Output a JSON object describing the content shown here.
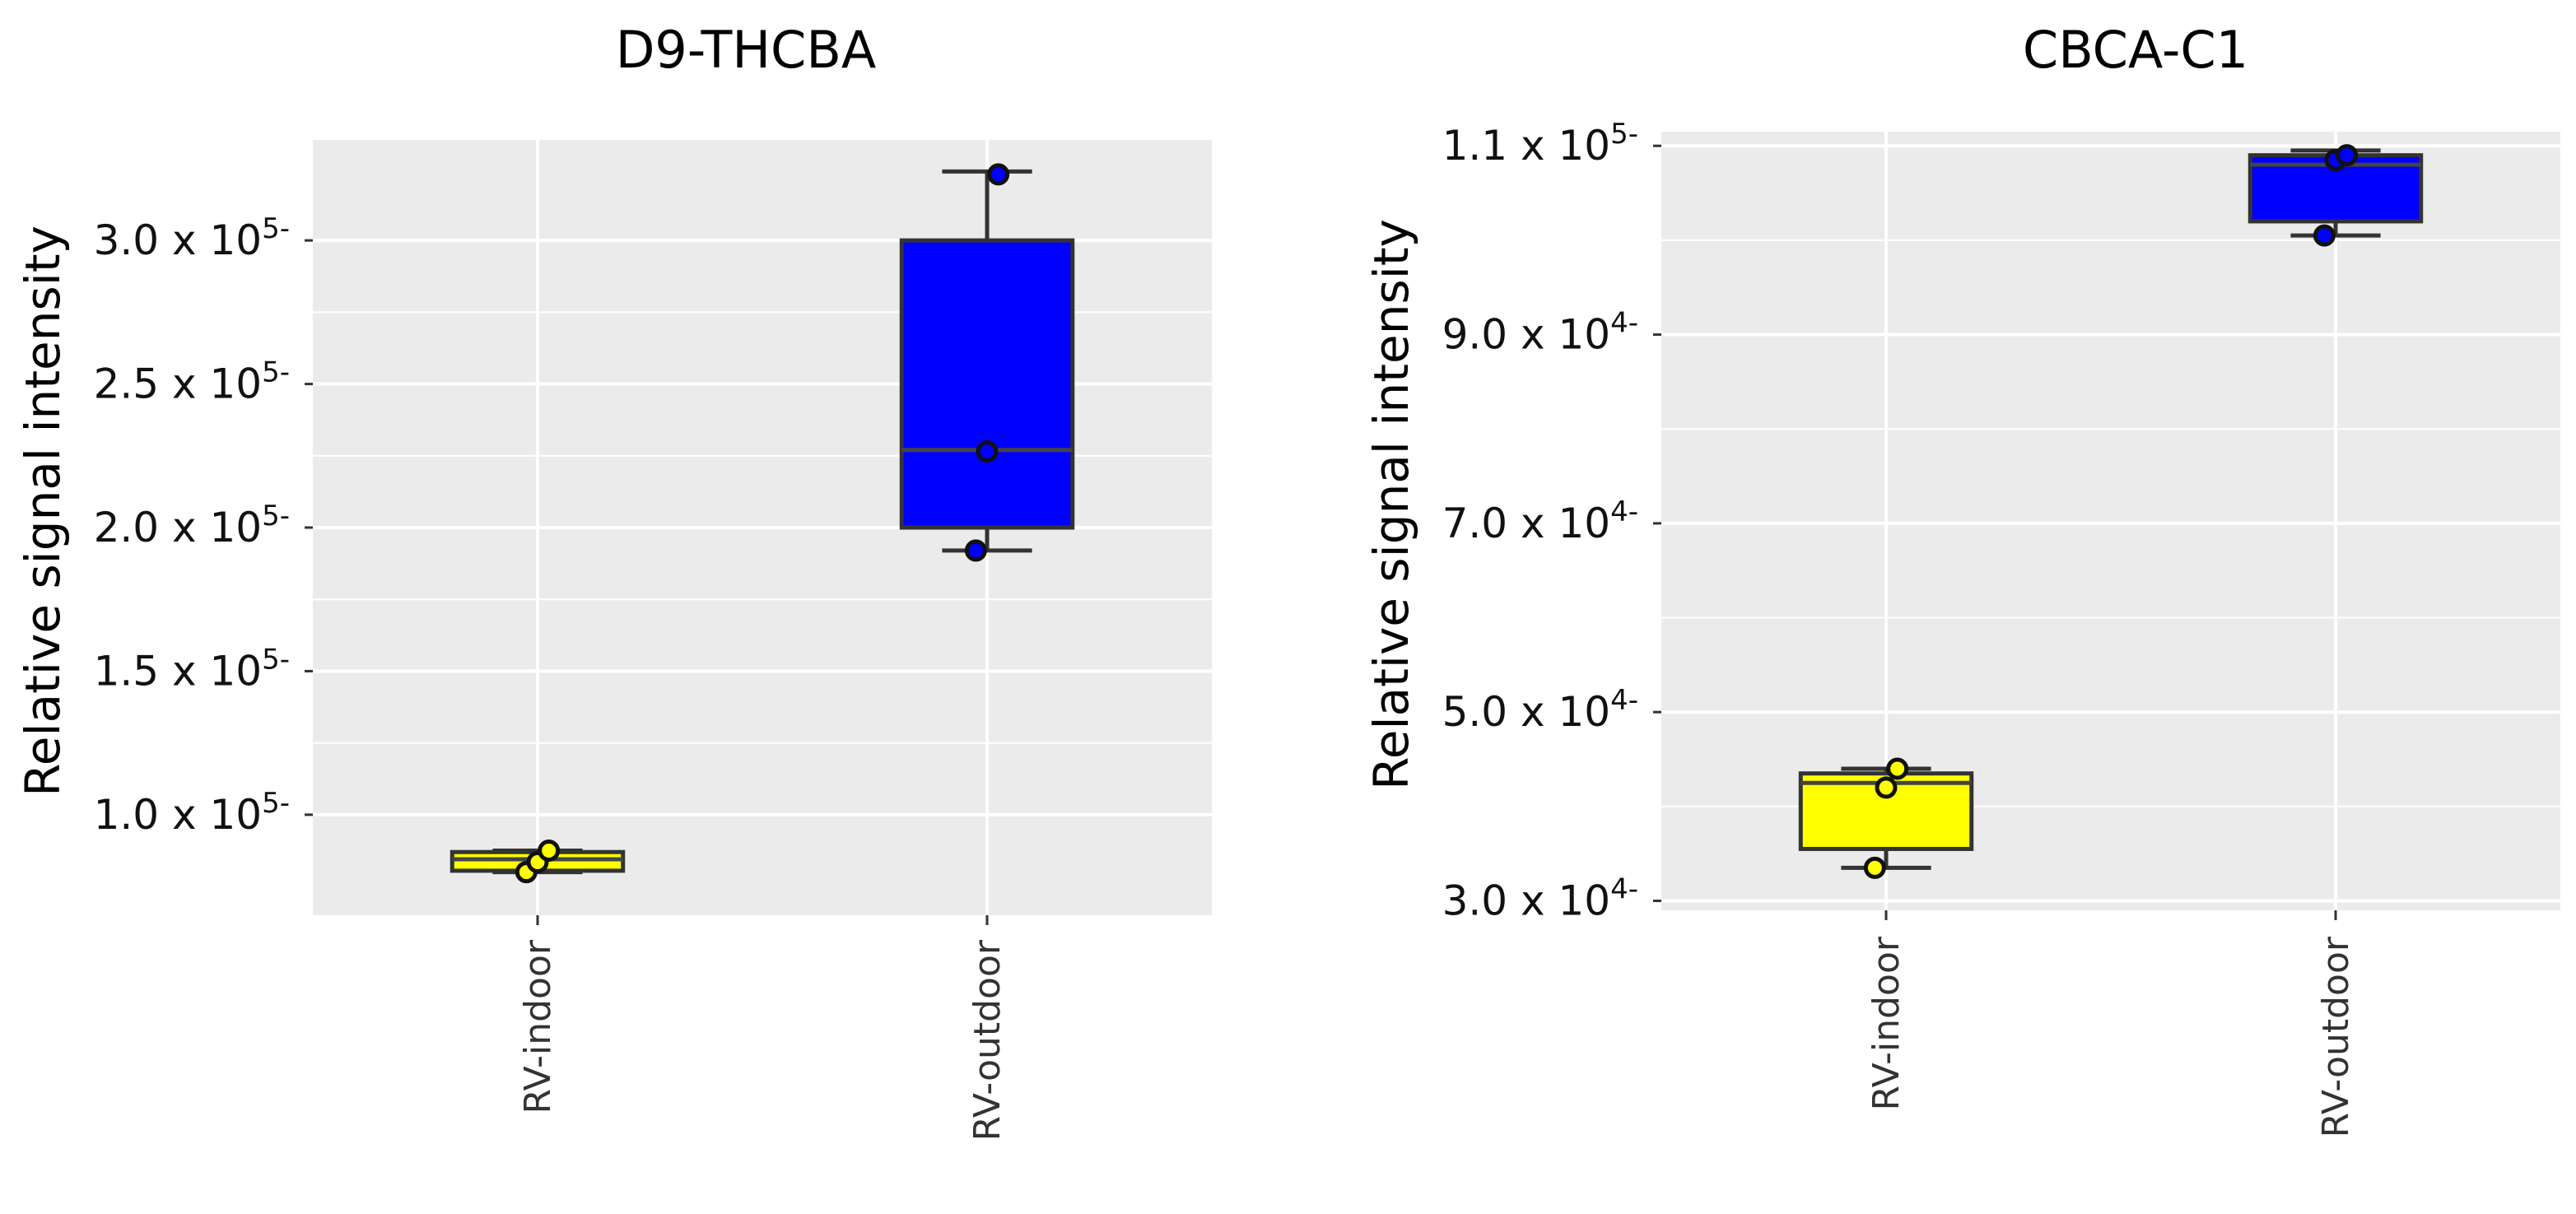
{
  "chart_data": [
    {
      "type": "box",
      "title": "D9-THCBA",
      "ylabel": "Relative signal intensity",
      "ylim": [
        65000,
        335000
      ],
      "yticks": [
        {
          "value": 100000,
          "mantissa": "1.0",
          "base": "x 10",
          "exp": "5-"
        },
        {
          "value": 150000,
          "mantissa": "1.5",
          "base": "x 10",
          "exp": "5-"
        },
        {
          "value": 200000,
          "mantissa": "2.0",
          "base": "x 10",
          "exp": "5-"
        },
        {
          "value": 250000,
          "mantissa": "2.5",
          "base": "x 10",
          "exp": "5-"
        },
        {
          "value": 300000,
          "mantissa": "3.0",
          "base": "x 10",
          "exp": "5-"
        }
      ],
      "categories": [
        "RV-indoor",
        "RV-outdoor"
      ],
      "boxes": [
        {
          "category": "RV-indoor",
          "fill": "#ffff00",
          "min": 80000,
          "q1": 80500,
          "median": 84500,
          "q3": 87000,
          "max": 87500,
          "points": [
            80000,
            83500,
            87500
          ]
        },
        {
          "category": "RV-outdoor",
          "fill": "#0000ff",
          "min": 192000,
          "q1": 200000,
          "median": 227000,
          "q3": 300000,
          "max": 324000,
          "points": [
            192000,
            226500,
            323000
          ]
        }
      ]
    },
    {
      "type": "box",
      "title": "CBCA-C1",
      "ylabel": "Relative signal intensity",
      "ylim": [
        29000,
        111500
      ],
      "yticks": [
        {
          "value": 30000,
          "mantissa": "3.0",
          "base": "x 10",
          "exp": "4-"
        },
        {
          "value": 50000,
          "mantissa": "5.0",
          "base": "x 10",
          "exp": "4-"
        },
        {
          "value": 70000,
          "mantissa": "7.0",
          "base": "x 10",
          "exp": "4-"
        },
        {
          "value": 90000,
          "mantissa": "9.0",
          "base": "x 10",
          "exp": "4-"
        },
        {
          "value": 110000,
          "mantissa": "1.1",
          "base": "x 10",
          "exp": "5-"
        }
      ],
      "categories": [
        "RV-indoor",
        "RV-outdoor"
      ],
      "boxes": [
        {
          "category": "RV-indoor",
          "fill": "#ffff00",
          "min": 33500,
          "q1": 35500,
          "median": 42500,
          "q3": 43500,
          "max": 44000,
          "points": [
            33500,
            42000,
            44000
          ]
        },
        {
          "category": "RV-outdoor",
          "fill": "#0000ff",
          "min": 100500,
          "q1": 102000,
          "median": 108000,
          "q3": 109000,
          "max": 109500,
          "points": [
            100500,
            108500,
            109000
          ]
        }
      ]
    }
  ]
}
